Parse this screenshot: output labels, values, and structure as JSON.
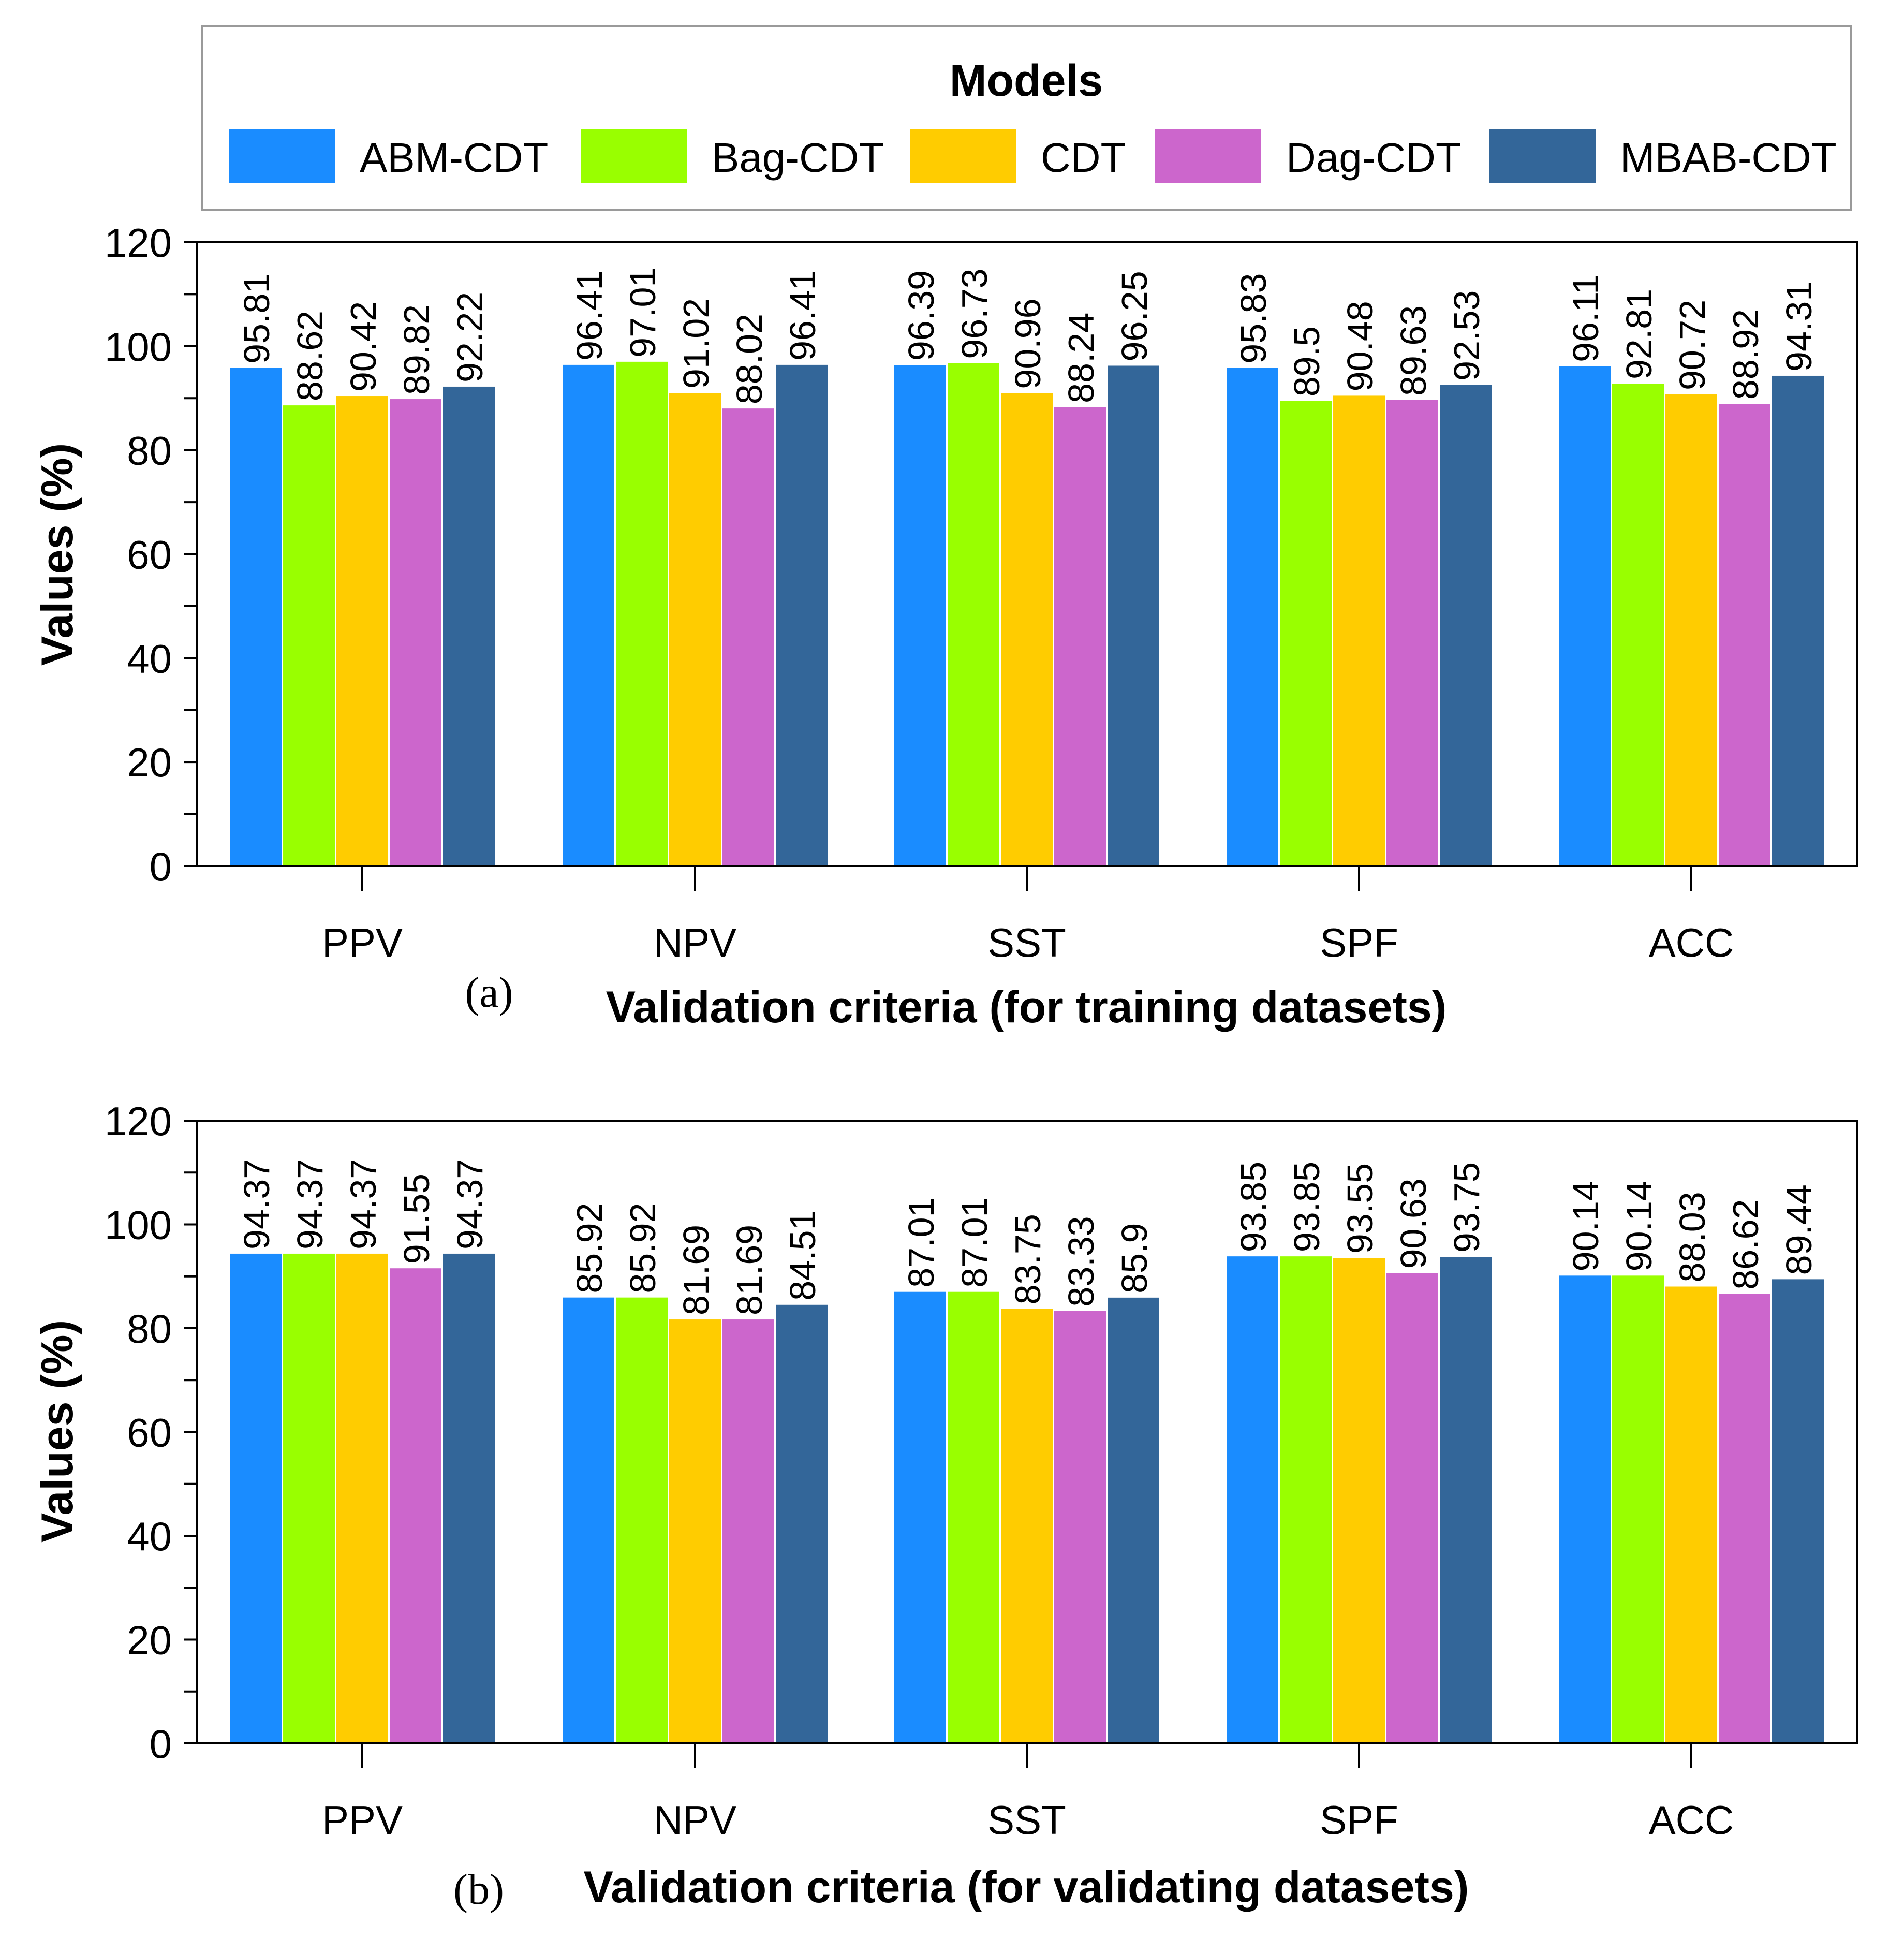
{
  "legend": {
    "title": "Models",
    "items": [
      {
        "name": "ABM-CDT",
        "color": "#1a8cff"
      },
      {
        "name": "Bag-CDT",
        "color": "#99ff00"
      },
      {
        "name": "CDT",
        "color": "#ffcc00"
      },
      {
        "name": "Dag-CDT",
        "color": "#cc66cc"
      },
      {
        "name": "MBAB-CDT",
        "color": "#336699"
      }
    ]
  },
  "chart_data": [
    {
      "type": "bar",
      "panel_label": "(a)",
      "title": "",
      "xlabel": "Validation criteria (for training datasets)",
      "ylabel": "Values (%)",
      "ylim": [
        0,
        120
      ],
      "yticks": [
        "0",
        "20",
        "40",
        "60",
        "80",
        "100",
        "120"
      ],
      "categories": [
        "PPV",
        "NPV",
        "SST",
        "SPF",
        "ACC"
      ],
      "series": [
        {
          "name": "ABM-CDT",
          "values": [
            95.81,
            96.41,
            96.39,
            95.83,
            96.11
          ],
          "labels": [
            "95.81",
            "96.41",
            "96.39",
            "95.83",
            "96.11"
          ]
        },
        {
          "name": "Bag-CDT",
          "values": [
            88.62,
            97.01,
            96.73,
            89.5,
            92.81
          ],
          "labels": [
            "88.62",
            "97.01",
            "96.73",
            "89.5",
            "92.81"
          ]
        },
        {
          "name": "CDT",
          "values": [
            90.42,
            91.02,
            90.96,
            90.48,
            90.72
          ],
          "labels": [
            "90.42",
            "91.02",
            "90.96",
            "90.48",
            "90.72"
          ]
        },
        {
          "name": "Dag-CDT",
          "values": [
            89.82,
            88.02,
            88.24,
            89.63,
            88.92
          ],
          "labels": [
            "89.82",
            "88.02",
            "88.24",
            "89.63",
            "88.92"
          ]
        },
        {
          "name": "MBAB-CDT",
          "values": [
            92.22,
            96.41,
            96.25,
            92.53,
            94.31
          ],
          "labels": [
            "92.22",
            "96.41",
            "96.25",
            "92.53",
            "94.31"
          ]
        }
      ]
    },
    {
      "type": "bar",
      "panel_label": "(b)",
      "title": "",
      "xlabel": "Validation criteria (for validating datasets)",
      "ylabel": "Values (%)",
      "ylim": [
        0,
        120
      ],
      "yticks": [
        "0",
        "20",
        "40",
        "60",
        "80",
        "100",
        "120"
      ],
      "categories": [
        "PPV",
        "NPV",
        "SST",
        "SPF",
        "ACC"
      ],
      "series": [
        {
          "name": "ABM-CDT",
          "values": [
            94.37,
            85.92,
            87.01,
            93.85,
            90.14
          ],
          "labels": [
            "94.37",
            "85.92",
            "87.01",
            "93.85",
            "90.14"
          ]
        },
        {
          "name": "Bag-CDT",
          "values": [
            94.37,
            85.92,
            87.01,
            93.85,
            90.14
          ],
          "labels": [
            "94.37",
            "85.92",
            "87.01",
            "93.85",
            "90.14"
          ]
        },
        {
          "name": "CDT",
          "values": [
            94.37,
            81.69,
            83.75,
            93.55,
            88.03
          ],
          "labels": [
            "94.37",
            "81.69",
            "83.75",
            "93.55",
            "88.03"
          ]
        },
        {
          "name": "Dag-CDT",
          "values": [
            91.55,
            81.69,
            83.33,
            90.63,
            86.62
          ],
          "labels": [
            "91.55",
            "81.69",
            "83.33",
            "90.63",
            "86.62"
          ]
        },
        {
          "name": "MBAB-CDT",
          "values": [
            94.37,
            84.51,
            85.9,
            93.75,
            89.44
          ],
          "labels": [
            "94.37",
            "84.51",
            "85.9",
            "93.75",
            "89.44"
          ]
        }
      ]
    }
  ]
}
